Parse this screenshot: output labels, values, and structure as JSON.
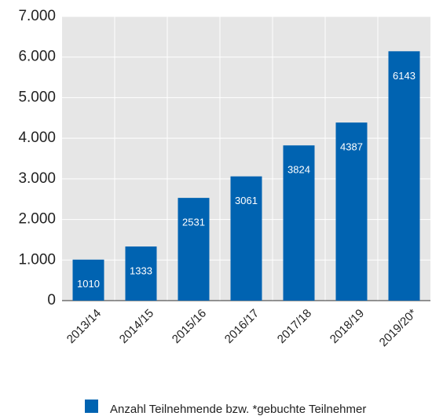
{
  "chart_data": {
    "type": "bar",
    "categories": [
      "2013/14",
      "2014/15",
      "2015/16",
      "2016/17",
      "2017/18",
      "2018/19",
      "2019/20*"
    ],
    "series": [
      {
        "name": "Anzahl Teilnehmende bzw. *gebuchte Teilnehmer",
        "color": "#0063b1",
        "values": [
          1010,
          1333,
          2531,
          3061,
          3824,
          4387,
          6143
        ]
      }
    ],
    "ylim": [
      0,
      7000
    ],
    "yticks": [
      0,
      {
        "value": 1000,
        "label": "1.000"
      },
      {
        "value": 2000,
        "label": "2.000"
      },
      {
        "value": 3000,
        "label": "3.000"
      },
      {
        "value": 4000,
        "label": "4.000"
      },
      {
        "value": 5000,
        "label": "5.000"
      },
      {
        "value": 6000,
        "label": "6.000"
      },
      {
        "value": 7000,
        "label": "7.000"
      }
    ],
    "grid": true,
    "legend": "bottom"
  }
}
